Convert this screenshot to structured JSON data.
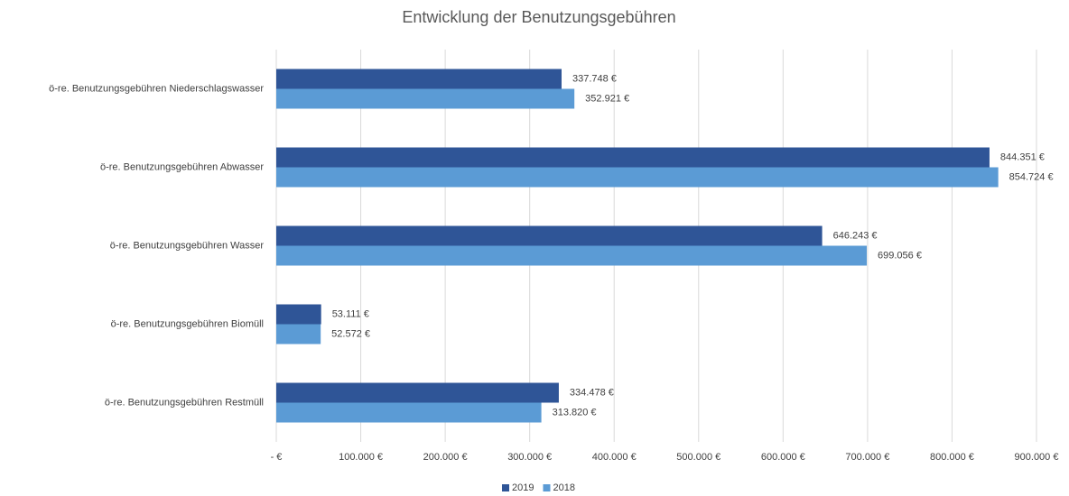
{
  "chart_data": {
    "type": "bar",
    "orientation": "horizontal",
    "title": "Entwicklung der Benutzungsgebühren",
    "categories": [
      "ö-re. Benutzungsgebühren Niederschlagswasser",
      "ö-re. Benutzungsgebühren Abwasser",
      "ö-re. Benutzungsgebühren Wasser",
      "ö-re. Benutzungsgebühren Biomüll",
      "ö-re. Benutzungsgebühren Restmüll"
    ],
    "series": [
      {
        "name": "2019",
        "color": "#2f5597",
        "values": [
          337748,
          844351,
          646243,
          53111,
          334478
        ],
        "value_labels": [
          "337.748 €",
          "844.351 €",
          "646.243 €",
          "53.111 €",
          "334.478 €"
        ]
      },
      {
        "name": "2018",
        "color": "#5b9bd5",
        "values": [
          352921,
          854724,
          699056,
          52572,
          313820
        ],
        "value_labels": [
          "352.921 €",
          "854.724 €",
          "699.056 €",
          "52.572 €",
          "313.820 €"
        ]
      }
    ],
    "xlim": [
      0,
      900000
    ],
    "xticks": [
      {
        "value": 0,
        "label": "-  €"
      },
      {
        "value": 100000,
        "label": "100.000 €"
      },
      {
        "value": 200000,
        "label": "200.000 €"
      },
      {
        "value": 300000,
        "label": "300.000 €"
      },
      {
        "value": 400000,
        "label": "400.000 €"
      },
      {
        "value": 500000,
        "label": "500.000 €"
      },
      {
        "value": 600000,
        "label": "600.000 €"
      },
      {
        "value": 700000,
        "label": "700.000 €"
      },
      {
        "value": 800000,
        "label": "800.000 €"
      },
      {
        "value": 900000,
        "label": "900.000 €"
      }
    ],
    "grid": true,
    "legend": "bottom"
  }
}
